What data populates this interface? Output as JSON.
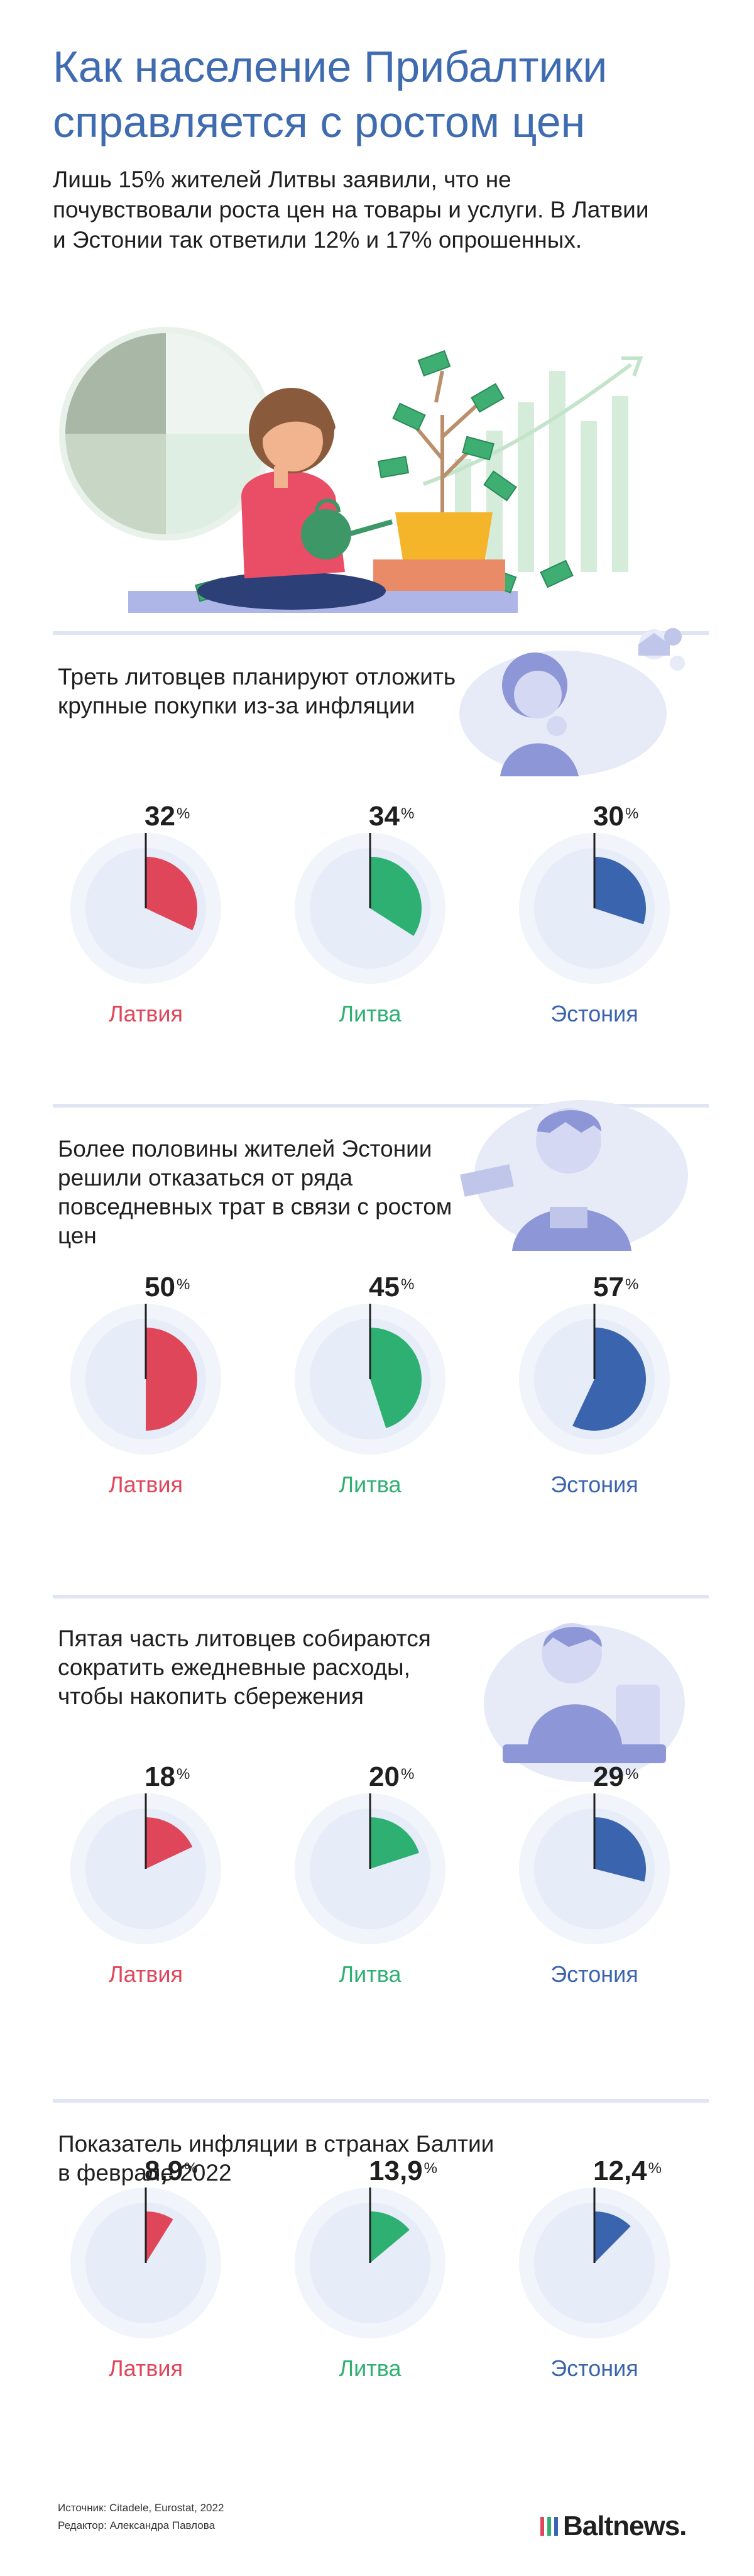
{
  "title": "Как население Прибалтики справляется с ростом цен",
  "intro": "Лишь 15% жителей Литвы заявили, что не почувствовали роста цен на товары и услуги. В Латвии и Эстонии так ответили 12% и 17% опрошенных.",
  "colors": {
    "title": "#3f6bb0",
    "latvia": "#e0465a",
    "lithuania": "#2fb073",
    "estonia": "#3a64ad",
    "pie_bg": "#e6edf8",
    "ring": "#f1f4fb"
  },
  "icons": [
    "woman-with-money-tree-illustration",
    "pensive-woman-thought-bubble-illustration",
    "upset-boy-with-wallet-illustration",
    "man-counting-coins-illustration",
    "baltnews-logo-icon"
  ],
  "chart_data": [
    {
      "type": "pie",
      "title": "Треть литовцев планируют отложить крупные покупки из-за инфляции",
      "categories": [
        "Латвия",
        "Литва",
        "Эстония"
      ],
      "values": [
        32,
        34,
        30
      ],
      "labels": [
        "32",
        "34",
        "30"
      ],
      "unit": "%"
    },
    {
      "type": "pie",
      "title": "Более половины жителей Эстонии решили отказаться от ряда повседневных трат в связи с ростом цен",
      "categories": [
        "Латвия",
        "Литва",
        "Эстония"
      ],
      "values": [
        50,
        45,
        57
      ],
      "labels": [
        "50",
        "45",
        "57"
      ],
      "unit": "%"
    },
    {
      "type": "pie",
      "title": "Пятая часть литовцев собираются сократить ежедневные расходы, чтобы накопить сбережения",
      "categories": [
        "Латвия",
        "Литва",
        "Эстония"
      ],
      "values": [
        18,
        20,
        29
      ],
      "labels": [
        "18",
        "20",
        "29"
      ],
      "unit": "%"
    },
    {
      "type": "pie",
      "title": "Показатель инфляции в странах Балтии в феврале 2022",
      "categories": [
        "Латвия",
        "Литва",
        "Эстония"
      ],
      "values": [
        8.9,
        13.9,
        12.4
      ],
      "labels": [
        "8,9",
        "13,9",
        "12,4"
      ],
      "unit": "%"
    }
  ],
  "footer": {
    "source": "Источник: Citadele, Eurostat, 2022",
    "editor": "Редактор: Александра Павлова",
    "logo": "Baltnews."
  }
}
